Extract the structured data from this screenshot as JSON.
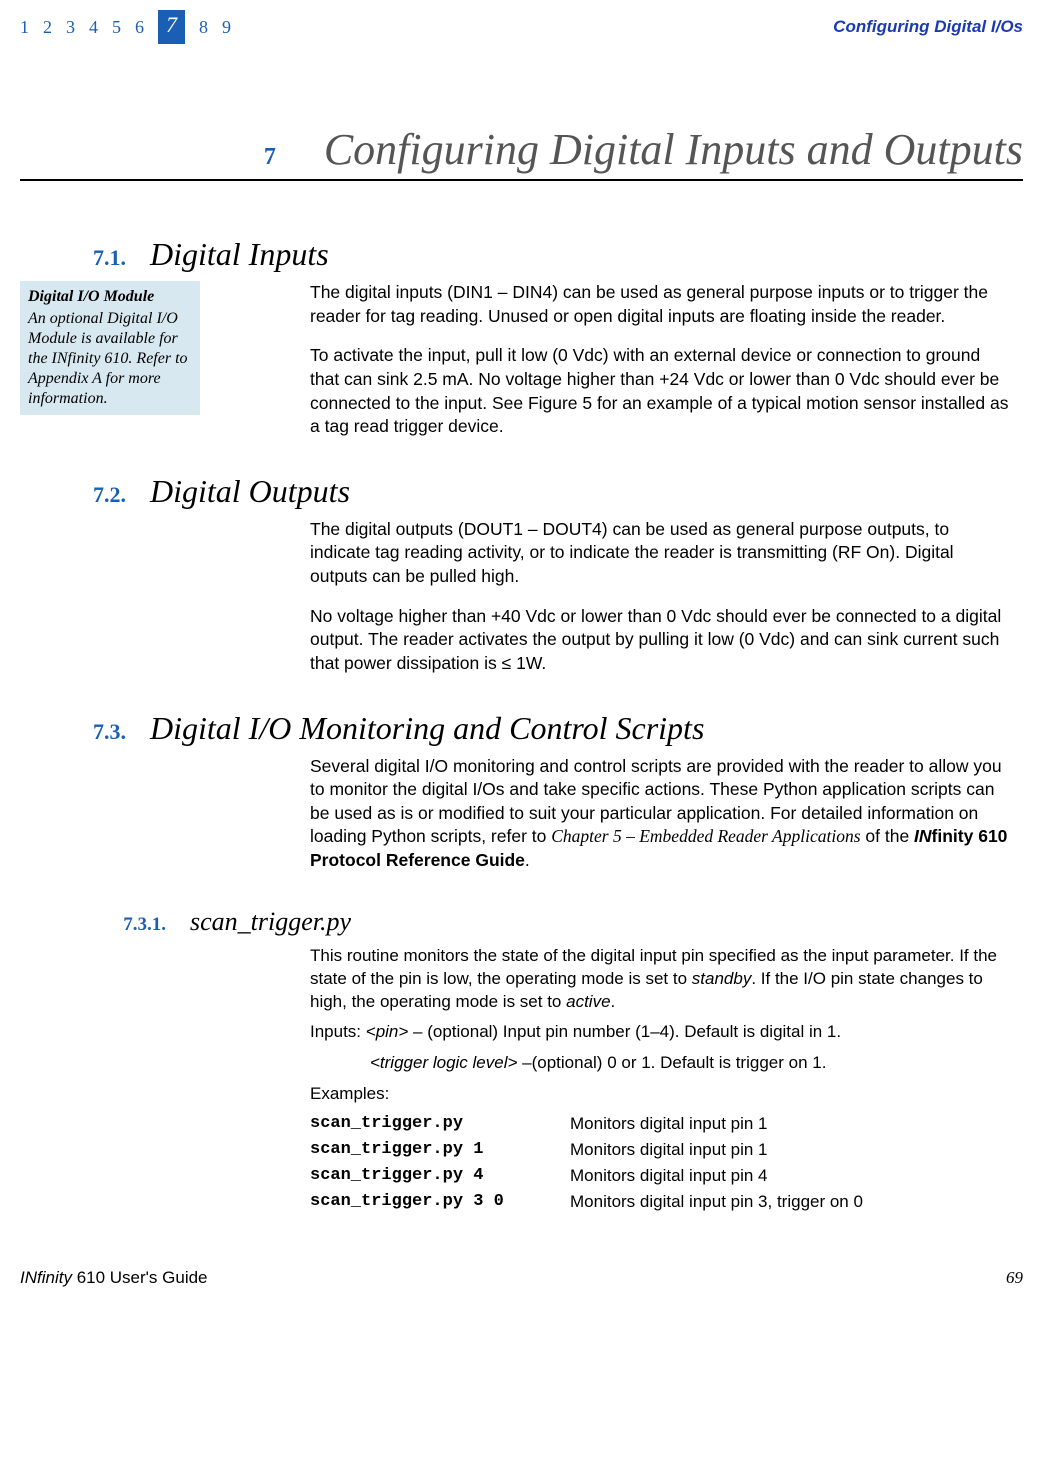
{
  "header": {
    "nav": [
      "1",
      "2",
      "3",
      "4",
      "5",
      "6",
      "7",
      "8",
      "9"
    ],
    "current_index": 6,
    "right_label": "Configuring Digital I/Os"
  },
  "chapter": {
    "num": "7",
    "title": "Configuring Digital Inputs and Outputs"
  },
  "callout": {
    "title": "Digital I/O Module",
    "body": "An optional Digital I/O Module is available for the INfinity 610. Refer to Appendix A for more information."
  },
  "s71": {
    "num": "7.1.",
    "title": "Digital Inputs",
    "p1": "The digital inputs (DIN1 – DIN4) can be used as general purpose inputs or to trigger the reader for tag reading. Unused or open digital inputs are floating inside the reader.",
    "p2": "To activate the input, pull it low (0 Vdc) with an external device or connection to ground that can sink 2.5 mA. No voltage higher than +24 Vdc or lower than 0 Vdc should ever be connected to the input. See Figure 5 for an example of a typical motion sensor installed as a tag read trigger device."
  },
  "s72": {
    "num": "7.2.",
    "title": "Digital Outputs",
    "p1": "The digital outputs (DOUT1 – DOUT4) can be used as general purpose outputs, to indicate tag reading activity, or to indicate the reader is transmitting (RF On). Digital outputs can be pulled high.",
    "p2": "No voltage higher than +40 Vdc or lower than 0 Vdc should ever be connected to a digital output. The reader activates the output by pulling it low (0 Vdc) and can sink current such that power dissipation is ≤ 1W."
  },
  "s73": {
    "num": "7.3.",
    "title": "Digital I/O Monitoring and Control Scripts",
    "p1_a": "Several digital I/O monitoring and control scripts are provided with the reader to allow you to monitor the digital I/Os and take specific actions. These Python application scripts can be used as is or modified to suit your particular application. For detailed information on loading Python scripts, refer to ",
    "p1_ref1": "Chapter 5 – Embedded Reader Applications",
    "p1_b": " of the ",
    "p1_ref2": "INfinity 610 Protocol Reference Guide",
    "p1_c": "."
  },
  "s731": {
    "num": "7.3.1.",
    "title": "scan_trigger.py",
    "p1_a": "This routine monitors the state of the digital input pin specified as the input parameter. If the state of the pin is low, the operating mode is set to ",
    "p1_i1": "standby",
    "p1_b": ". If the I/O pin state changes to high, the operating mode is set to ",
    "p1_i2": "active",
    "p1_c": ".",
    "inputs_label": "Inputs: ",
    "param1": "<pin>",
    "param1_desc": " –  (optional) Input pin number (1–4). Default is digital in 1.",
    "param2": "<trigger logic level>",
    "param2_desc": " –(optional) 0 or 1. Default is trigger on 1.",
    "examples_label": "Examples:",
    "examples": [
      {
        "cmd": "scan_trigger.py",
        "desc": "Monitors digital input pin 1"
      },
      {
        "cmd": "scan_trigger.py 1",
        "desc": "Monitors digital input pin 1"
      },
      {
        "cmd": "scan_trigger.py 4",
        "desc": "Monitors digital input pin 4"
      },
      {
        "cmd": "scan_trigger.py 3 0",
        "desc": "Monitors digital input pin 3, trigger on 0"
      }
    ]
  },
  "footer": {
    "left_a": "IN",
    "left_b": "finity",
    "left_c": " 610 User's Guide",
    "page": "69"
  }
}
